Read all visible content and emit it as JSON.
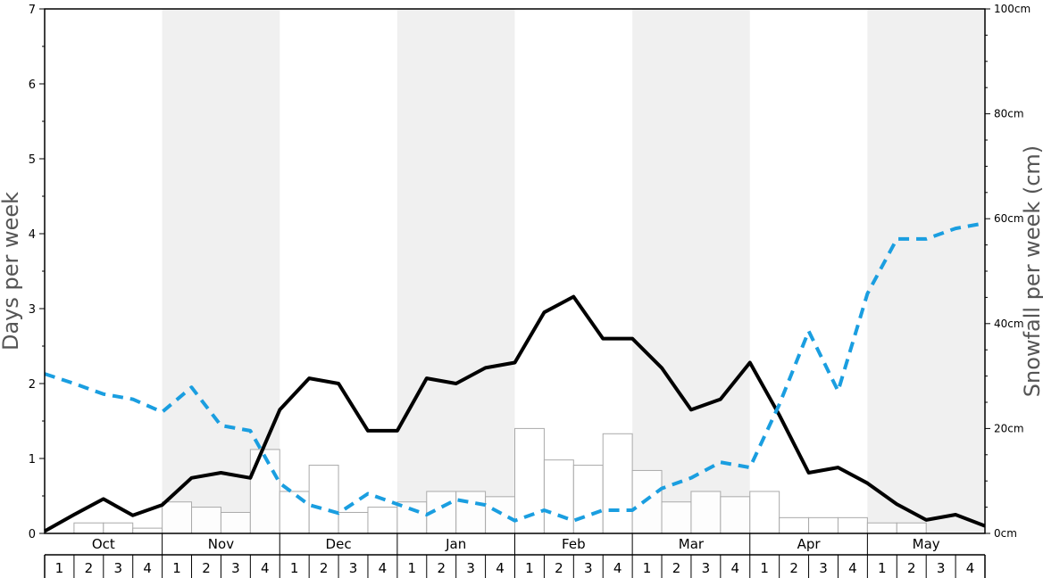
{
  "chart_data": {
    "type": "bar+line",
    "ylabel_left": "Days per week",
    "ylabel_right": "Snowfall per week (cm)",
    "ylim_left": [
      0,
      7
    ],
    "ylim_right": [
      0,
      100
    ],
    "left_ticks": [
      "0",
      "1",
      "2",
      "3",
      "4",
      "5",
      "6",
      "7"
    ],
    "right_ticks": [
      "0cm",
      "20cm",
      "40cm",
      "60cm",
      "80cm",
      "100cm"
    ],
    "months": [
      "Oct",
      "Nov",
      "Dec",
      "Jan",
      "Feb",
      "Mar",
      "Apr",
      "May"
    ],
    "weeks": [
      "1",
      "2",
      "3",
      "4"
    ],
    "shaded_months": [
      "Nov",
      "Jan",
      "Mar",
      "May"
    ],
    "colors": {
      "shade": "#f0f0f0",
      "bar_fill": "#ffffff",
      "bar_stroke": "#aaaaaa",
      "snow_days_line": "#000000",
      "dashed_line": "#1a9ee0"
    },
    "series": [
      {
        "kind": "bar",
        "axis": "right",
        "values": [
          0,
          2,
          2,
          1,
          6,
          5,
          4,
          16,
          8,
          13,
          4,
          5,
          6,
          8,
          8,
          7,
          20,
          14,
          13,
          19,
          12,
          6,
          8,
          7,
          8,
          3,
          3,
          3,
          2,
          2,
          0,
          0
        ]
      },
      {
        "kind": "line",
        "axis": "left",
        "style": "solid",
        "values": [
          0.03,
          0.25,
          0.46,
          0.24,
          0.38,
          0.74,
          0.81,
          0.74,
          1.65,
          2.07,
          2.0,
          1.37,
          1.37,
          2.07,
          2.0,
          2.21,
          2.28,
          2.95,
          3.16,
          2.6,
          2.6,
          2.21,
          1.65,
          1.79,
          2.28,
          1.58,
          0.81,
          0.88,
          0.67,
          0.39,
          0.18,
          0.25,
          0.1
        ]
      },
      {
        "kind": "line",
        "axis": "left",
        "style": "dashed",
        "values": [
          2.13,
          2.0,
          1.86,
          1.79,
          1.62,
          1.95,
          1.44,
          1.37,
          0.67,
          0.38,
          0.27,
          0.53,
          0.39,
          0.25,
          0.45,
          0.38,
          0.17,
          0.31,
          0.17,
          0.31,
          0.31,
          0.6,
          0.74,
          0.95,
          0.88,
          1.72,
          2.7,
          1.9,
          3.2,
          3.93,
          3.93,
          4.07,
          4.14
        ]
      }
    ]
  }
}
